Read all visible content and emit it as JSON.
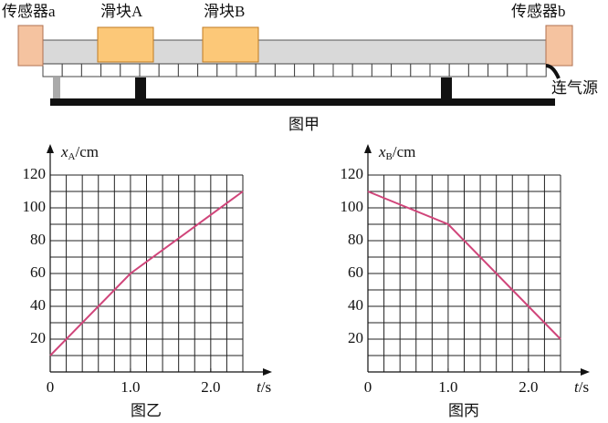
{
  "diagram": {
    "sensor_a": "传感器a",
    "slider_a": "滑块A",
    "slider_b": "滑块B",
    "sensor_b": "传感器b",
    "air_source": "连气源",
    "caption": "图甲"
  },
  "chart_data": [
    {
      "type": "line",
      "caption": "图乙",
      "xlabel": [
        "t",
        "/s"
      ],
      "ylabel": [
        "x",
        "A",
        "/cm"
      ],
      "x": [
        0,
        1.0,
        2.4
      ],
      "series": [
        {
          "color": "#d0457a",
          "values": [
            10,
            60,
            110
          ]
        }
      ],
      "xlim": [
        0,
        2.4
      ],
      "ylim": [
        0,
        120
      ],
      "xticks": [
        0,
        {
          "value": 1,
          "label": "1.0"
        },
        {
          "value": 2,
          "label": "2.0"
        }
      ],
      "yticks": [
        20,
        40,
        60,
        80,
        100,
        120
      ],
      "grid": true
    },
    {
      "type": "line",
      "caption": "图丙",
      "xlabel": [
        "t",
        "/s"
      ],
      "ylabel": [
        "x",
        "B",
        "/cm"
      ],
      "x": [
        0,
        1.0,
        2.4
      ],
      "series": [
        {
          "color": "#d0457a",
          "values": [
            110,
            90,
            20
          ]
        }
      ],
      "xlim": [
        0,
        2.4
      ],
      "ylim": [
        0,
        120
      ],
      "xticks": [
        0,
        {
          "value": 1,
          "label": "1.0"
        },
        {
          "value": 2,
          "label": "2.0"
        }
      ],
      "yticks": [
        20,
        40,
        60,
        80,
        100,
        120
      ],
      "grid": true
    }
  ]
}
